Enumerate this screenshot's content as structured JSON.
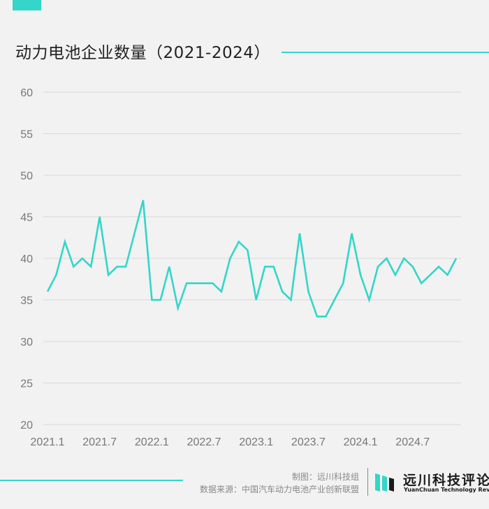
{
  "title": "动力电池企业数量（2021-2024）",
  "credits": {
    "maker": "制图：远川科技组",
    "source": "数据来源：中国汽车动力电池产业创新联盟"
  },
  "logo": {
    "cn": "远川科技评论",
    "en": "YuanChuan Technology Review",
    "icon": "brand-bars-icon"
  },
  "colors": {
    "accent": "#33d6c9",
    "grid": "#d9d9d9",
    "tick": "#777777"
  },
  "chart_data": {
    "type": "line",
    "title": "动力电池企业数量（2021-2024）",
    "xlabel": "",
    "ylabel": "",
    "ylim": [
      20,
      60
    ],
    "yticks": [
      20,
      25,
      30,
      35,
      40,
      45,
      50,
      55,
      60
    ],
    "xtick_labels": [
      "2021.1",
      "2021.7",
      "2022.1",
      "2022.7",
      "2023.1",
      "2023.7",
      "2024.1",
      "2024.7"
    ],
    "grid": "horizontal",
    "x": [
      "2021.1",
      "2021.2",
      "2021.3",
      "2021.4",
      "2021.5",
      "2021.6",
      "2021.7",
      "2021.8",
      "2021.9",
      "2021.10",
      "2021.11",
      "2021.12",
      "2022.1",
      "2022.2",
      "2022.3",
      "2022.4",
      "2022.5",
      "2022.6",
      "2022.7",
      "2022.8",
      "2022.9",
      "2022.10",
      "2022.11",
      "2022.12",
      "2023.1",
      "2023.2",
      "2023.3",
      "2023.4",
      "2023.5",
      "2023.6",
      "2023.7",
      "2023.8",
      "2023.9",
      "2023.10",
      "2023.11",
      "2023.12",
      "2024.1",
      "2024.2",
      "2024.3",
      "2024.4",
      "2024.5",
      "2024.6",
      "2024.7",
      "2024.8",
      "2024.9",
      "2024.10",
      "2024.11",
      "2024.12"
    ],
    "series": [
      {
        "color": "#33d6c9",
        "values": [
          36,
          38,
          42,
          39,
          40,
          39,
          45,
          38,
          39,
          39,
          43,
          47,
          35,
          35,
          39,
          34,
          37,
          37,
          37,
          37,
          36,
          40,
          42,
          41,
          35,
          39,
          39,
          36,
          35,
          43,
          36,
          33,
          33,
          35,
          37,
          43,
          38,
          35,
          39,
          40,
          38,
          40,
          39,
          37,
          38,
          39,
          38,
          40
        ]
      }
    ]
  }
}
